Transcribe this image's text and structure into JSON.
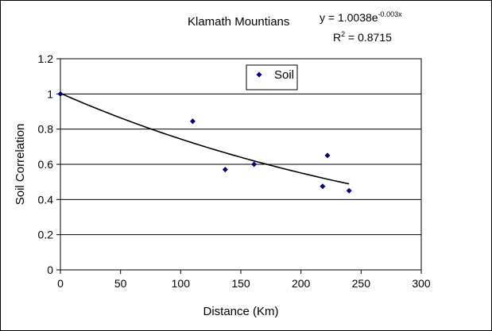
{
  "chart_data": {
    "type": "scatter",
    "title": "Klamath Mountians",
    "equation": {
      "base": "y = 1.0038e",
      "exponent": "-0.003x",
      "r2_label": "R",
      "r2_sup": "2",
      "r2_value": " = 0.8715"
    },
    "xlabel": "Distance (Km)",
    "ylabel": "Soil Correlation",
    "xlim": [
      0,
      300
    ],
    "ylim": [
      0,
      1.2
    ],
    "xticks": [
      0,
      50,
      100,
      150,
      200,
      250,
      300
    ],
    "yticks": [
      0,
      0.2,
      0.4,
      0.6,
      0.8,
      1,
      1.2
    ],
    "xtick_labels": [
      "0",
      "50",
      "100",
      "150",
      "200",
      "250",
      "300"
    ],
    "ytick_labels": [
      "0",
      "0.2",
      "0.4",
      "0.6",
      "0.8",
      "1",
      "1.2"
    ],
    "grid": "horizontal",
    "legend_position": "top-center",
    "series": [
      {
        "name": "Soil",
        "color": "#000080",
        "x": [
          0,
          110,
          137,
          161,
          218,
          222,
          240
        ],
        "y": [
          1.0,
          0.845,
          0.57,
          0.6,
          0.475,
          0.65,
          0.45
        ]
      }
    ],
    "trendline": {
      "type": "exponential",
      "a": 1.0038,
      "b": -0.003,
      "x_range": [
        0,
        240
      ],
      "color": "#000000"
    }
  }
}
